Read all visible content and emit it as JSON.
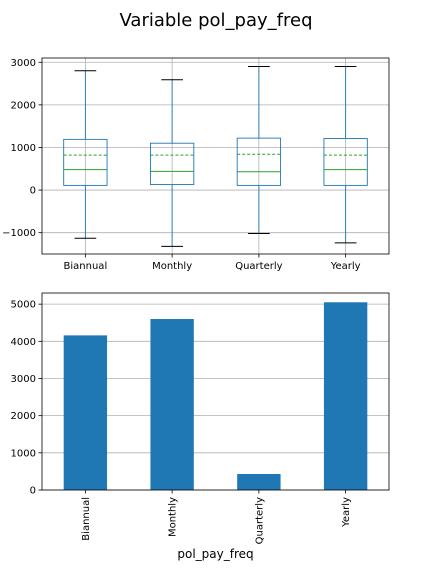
{
  "title": "Variable pol_pay_freq",
  "chart_data": [
    {
      "type": "box",
      "categories": [
        "Biannual",
        "Monthly",
        "Quarterly",
        "Yearly"
      ],
      "ylim": [
        -1500,
        3100
      ],
      "yticks": [
        -1000,
        0,
        1000,
        2000,
        3000
      ],
      "ytick_labels": [
        "−1000",
        "0",
        "1000",
        "2000",
        "3000"
      ],
      "grid": true,
      "boxes": [
        {
          "whisker_low": -1130,
          "q1": 110,
          "median": 480,
          "mean": 820,
          "q3": 1190,
          "whisker_high": 2800
        },
        {
          "whisker_low": -1320,
          "q1": 130,
          "median": 440,
          "mean": 820,
          "q3": 1100,
          "whisker_high": 2590
        },
        {
          "whisker_low": -1020,
          "q1": 110,
          "median": 430,
          "mean": 840,
          "q3": 1220,
          "whisker_high": 2900
        },
        {
          "whisker_low": -1240,
          "q1": 110,
          "median": 480,
          "mean": 820,
          "q3": 1210,
          "whisker_high": 2900
        }
      ],
      "colors": {
        "box": "#1f77b4",
        "median": "#2ca02c",
        "mean": "#2ca02c",
        "cap": "#000000"
      }
    },
    {
      "type": "bar",
      "categories": [
        "Biannual",
        "Monthly",
        "Quarterly",
        "Yearly"
      ],
      "values": [
        4160,
        4600,
        430,
        5050
      ],
      "xlabel": "pol_pay_freq",
      "ylim": [
        0,
        5300
      ],
      "yticks": [
        0,
        1000,
        2000,
        3000,
        4000,
        5000
      ],
      "grid": true,
      "colors": {
        "bar": "#1f77b4"
      }
    }
  ]
}
